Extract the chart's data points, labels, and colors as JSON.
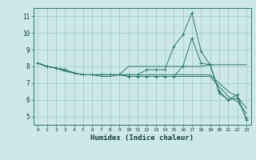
{
  "xlabel": "Humidex (Indice chaleur)",
  "bg_color": "#cce8e8",
  "line_color": "#2a7a6a",
  "grid_color": "#aacccc",
  "xlim": [
    -0.5,
    23.5
  ],
  "ylim": [
    4.5,
    11.5
  ],
  "xticks": [
    0,
    1,
    2,
    3,
    4,
    5,
    6,
    7,
    8,
    9,
    10,
    11,
    12,
    13,
    14,
    15,
    16,
    17,
    18,
    19,
    20,
    21,
    22,
    23
  ],
  "yticks": [
    5,
    6,
    7,
    8,
    9,
    10,
    11
  ],
  "lines": [
    {
      "x": [
        0,
        1,
        2,
        3,
        4,
        5,
        6,
        7,
        8,
        9,
        10,
        11,
        12,
        13,
        14,
        15,
        16,
        17,
        18,
        19,
        20,
        21,
        22,
        23
      ],
      "y": [
        8.2,
        8.0,
        7.9,
        7.8,
        7.6,
        7.5,
        7.5,
        7.5,
        7.5,
        7.5,
        7.5,
        7.5,
        7.8,
        7.8,
        7.8,
        9.2,
        9.9,
        11.2,
        8.9,
        8.1,
        6.5,
        6.0,
        6.3,
        4.8
      ],
      "marker": "+"
    },
    {
      "x": [
        0,
        1,
        2,
        3,
        4,
        5,
        6,
        7,
        8,
        9,
        10,
        11,
        12,
        13,
        14,
        15,
        16,
        17,
        18,
        19,
        20,
        21,
        22,
        23
      ],
      "y": [
        8.2,
        8.0,
        7.9,
        7.8,
        7.6,
        7.5,
        7.5,
        7.5,
        7.5,
        7.5,
        8.0,
        8.0,
        8.0,
        8.0,
        8.0,
        8.0,
        8.0,
        8.0,
        8.0,
        8.1,
        8.1,
        8.1,
        8.1,
        8.1
      ],
      "marker": null
    },
    {
      "x": [
        0,
        1,
        2,
        3,
        4,
        5,
        6,
        7,
        8,
        9,
        10,
        11,
        12,
        13,
        14,
        15,
        16,
        17,
        18,
        19,
        20,
        21,
        22,
        23
      ],
      "y": [
        8.2,
        8.0,
        7.9,
        7.8,
        7.6,
        7.5,
        7.5,
        7.5,
        7.5,
        7.5,
        7.5,
        7.5,
        7.5,
        7.5,
        7.5,
        7.5,
        7.5,
        7.5,
        7.5,
        7.5,
        7.0,
        6.5,
        6.2,
        5.5
      ],
      "marker": null
    },
    {
      "x": [
        0,
        1,
        2,
        3,
        4,
        5,
        6,
        7,
        8,
        9,
        10,
        11,
        12,
        13,
        14,
        15,
        16,
        17,
        18,
        19,
        20,
        21,
        22,
        23
      ],
      "y": [
        8.2,
        8.0,
        7.9,
        7.7,
        7.6,
        7.5,
        7.5,
        7.4,
        7.4,
        7.5,
        7.4,
        7.4,
        7.4,
        7.4,
        7.4,
        7.4,
        7.4,
        7.4,
        7.4,
        7.4,
        6.8,
        6.2,
        5.9,
        5.2
      ],
      "marker": null
    },
    {
      "x": [
        0,
        1,
        2,
        3,
        4,
        5,
        6,
        7,
        8,
        9,
        10,
        11,
        12,
        13,
        14,
        15,
        16,
        17,
        18,
        19,
        20,
        21,
        22,
        23
      ],
      "y": [
        8.2,
        8.0,
        7.9,
        7.8,
        7.6,
        7.5,
        7.5,
        7.5,
        7.5,
        7.5,
        7.4,
        7.4,
        7.4,
        7.4,
        7.4,
        7.4,
        8.0,
        9.7,
        8.2,
        8.1,
        6.4,
        6.0,
        6.1,
        4.9
      ],
      "marker": "+"
    }
  ]
}
